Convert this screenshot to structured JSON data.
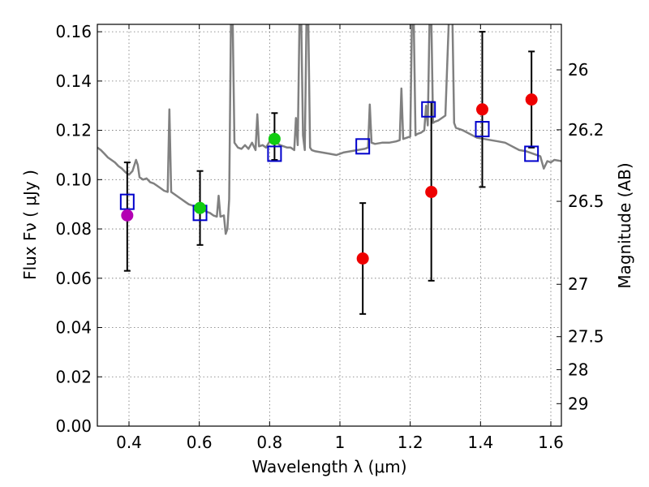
{
  "chart_data": {
    "type": "scatter",
    "title": "",
    "xlabel": "Wavelength  λ (μm)",
    "ylabel": "Flux  Fν  ( μJy )",
    "ylabel_right": "Magnitude (AB)",
    "xlim": [
      0.31,
      1.63
    ],
    "ylim": [
      0.0,
      0.163
    ],
    "grid": true,
    "x_ticks": [
      0.4,
      0.6,
      0.8,
      1.0,
      1.2,
      1.4,
      1.6
    ],
    "x_tick_labels": [
      "0.4",
      "0.6",
      "0.8",
      "1",
      "1.2",
      "1.4",
      "1.6"
    ],
    "y_ticks": [
      0.0,
      0.02,
      0.04,
      0.06,
      0.08,
      0.1,
      0.12,
      0.14,
      0.16
    ],
    "y_tick_labels": [
      "0.00",
      "0.02",
      "0.04",
      "0.06",
      "0.08",
      "0.10",
      "0.12",
      "0.14",
      "0.16"
    ],
    "right_ticks": [
      {
        "mag": 26,
        "label": "26"
      },
      {
        "mag": 26.2,
        "label": "26.2"
      },
      {
        "mag": 26.5,
        "label": "26.5"
      },
      {
        "mag": 27,
        "label": "27"
      },
      {
        "mag": 27.5,
        "label": "27.5"
      },
      {
        "mag": 28,
        "label": "28"
      },
      {
        "mag": 29,
        "label": "29"
      }
    ],
    "colors": {
      "model": "#808080",
      "magenta": "#b300b3",
      "green": "#11cc11",
      "red": "#ee0000",
      "square": "#0000cc",
      "errorbar": "#000000"
    },
    "observed": [
      {
        "x": 0.395,
        "y": 0.0855,
        "yerr_low": 0.0225,
        "yerr_high": 0.0215,
        "color": "magenta"
      },
      {
        "x": 0.602,
        "y": 0.0885,
        "yerr_low": 0.015,
        "yerr_high": 0.015,
        "color": "green"
      },
      {
        "x": 0.814,
        "y": 0.1165,
        "yerr_low": 0.0085,
        "yerr_high": 0.0105,
        "color": "green"
      },
      {
        "x": 1.065,
        "y": 0.068,
        "yerr_low": 0.0225,
        "yerr_high": 0.0225,
        "color": "red"
      },
      {
        "x": 1.26,
        "y": 0.095,
        "yerr_low": 0.036,
        "yerr_high": 0.0365,
        "color": "red"
      },
      {
        "x": 1.405,
        "y": 0.1285,
        "yerr_low": 0.0315,
        "yerr_high": 0.0315,
        "color": "red"
      },
      {
        "x": 1.545,
        "y": 0.1325,
        "yerr_low": 0.0195,
        "yerr_high": 0.0195,
        "color": "red"
      }
    ],
    "model_photometry": [
      {
        "x": 0.395,
        "y": 0.091
      },
      {
        "x": 0.602,
        "y": 0.0865
      },
      {
        "x": 0.814,
        "y": 0.1105
      },
      {
        "x": 1.065,
        "y": 0.1135
      },
      {
        "x": 1.252,
        "y": 0.1285
      },
      {
        "x": 1.405,
        "y": 0.1205
      },
      {
        "x": 1.545,
        "y": 0.1105
      }
    ],
    "model_spectrum": [
      [
        0.31,
        0.113
      ],
      [
        0.32,
        0.112
      ],
      [
        0.33,
        0.1105
      ],
      [
        0.34,
        0.109
      ],
      [
        0.35,
        0.108
      ],
      [
        0.36,
        0.107
      ],
      [
        0.37,
        0.1055
      ],
      [
        0.38,
        0.1045
      ],
      [
        0.39,
        0.103
      ],
      [
        0.4,
        0.102
      ],
      [
        0.41,
        0.1035
      ],
      [
        0.42,
        0.108
      ],
      [
        0.425,
        0.106
      ],
      [
        0.43,
        0.101
      ],
      [
        0.44,
        0.1
      ],
      [
        0.45,
        0.1005
      ],
      [
        0.46,
        0.099
      ],
      [
        0.47,
        0.0985
      ],
      [
        0.48,
        0.0975
      ],
      [
        0.49,
        0.0965
      ],
      [
        0.5,
        0.0955
      ],
      [
        0.51,
        0.095
      ],
      [
        0.515,
        0.1285
      ],
      [
        0.52,
        0.095
      ],
      [
        0.53,
        0.094
      ],
      [
        0.54,
        0.093
      ],
      [
        0.55,
        0.092
      ],
      [
        0.56,
        0.091
      ],
      [
        0.57,
        0.09
      ],
      [
        0.58,
        0.0895
      ],
      [
        0.59,
        0.089
      ],
      [
        0.6,
        0.0885
      ],
      [
        0.61,
        0.088
      ],
      [
        0.62,
        0.087
      ],
      [
        0.63,
        0.0865
      ],
      [
        0.64,
        0.0855
      ],
      [
        0.65,
        0.085
      ],
      [
        0.655,
        0.0935
      ],
      [
        0.66,
        0.085
      ],
      [
        0.67,
        0.0855
      ],
      [
        0.675,
        0.078
      ],
      [
        0.68,
        0.08
      ],
      [
        0.685,
        0.092
      ],
      [
        0.69,
        0.165
      ],
      [
        0.695,
        0.165
      ],
      [
        0.7,
        0.115
      ],
      [
        0.71,
        0.113
      ],
      [
        0.72,
        0.1125
      ],
      [
        0.73,
        0.114
      ],
      [
        0.74,
        0.1125
      ],
      [
        0.75,
        0.115
      ],
      [
        0.76,
        0.112
      ],
      [
        0.765,
        0.1265
      ],
      [
        0.77,
        0.1135
      ],
      [
        0.78,
        0.114
      ],
      [
        0.79,
        0.113
      ],
      [
        0.8,
        0.1155
      ],
      [
        0.81,
        0.1145
      ],
      [
        0.82,
        0.115
      ],
      [
        0.83,
        0.114
      ],
      [
        0.84,
        0.1135
      ],
      [
        0.85,
        0.113
      ],
      [
        0.86,
        0.113
      ],
      [
        0.87,
        0.112
      ],
      [
        0.875,
        0.125
      ],
      [
        0.88,
        0.114
      ],
      [
        0.885,
        0.165
      ],
      [
        0.89,
        0.165
      ],
      [
        0.895,
        0.118
      ],
      [
        0.9,
        0.112
      ],
      [
        0.905,
        0.165
      ],
      [
        0.91,
        0.165
      ],
      [
        0.915,
        0.113
      ],
      [
        0.92,
        0.112
      ],
      [
        0.93,
        0.1115
      ],
      [
        0.95,
        0.111
      ],
      [
        0.97,
        0.1105
      ],
      [
        0.99,
        0.11
      ],
      [
        1.01,
        0.111
      ],
      [
        1.03,
        0.1115
      ],
      [
        1.05,
        0.112
      ],
      [
        1.07,
        0.1125
      ],
      [
        1.08,
        0.113
      ],
      [
        1.085,
        0.1305
      ],
      [
        1.09,
        0.115
      ],
      [
        1.1,
        0.1145
      ],
      [
        1.12,
        0.115
      ],
      [
        1.14,
        0.115
      ],
      [
        1.16,
        0.1155
      ],
      [
        1.17,
        0.116
      ],
      [
        1.175,
        0.137
      ],
      [
        1.18,
        0.1165
      ],
      [
        1.19,
        0.117
      ],
      [
        1.2,
        0.1175
      ],
      [
        1.205,
        0.165
      ],
      [
        1.21,
        0.165
      ],
      [
        1.215,
        0.118
      ],
      [
        1.22,
        0.1185
      ],
      [
        1.23,
        0.119
      ],
      [
        1.24,
        0.12
      ],
      [
        1.245,
        0.13
      ],
      [
        1.25,
        0.122
      ],
      [
        1.255,
        0.165
      ],
      [
        1.26,
        0.165
      ],
      [
        1.265,
        0.123
      ],
      [
        1.27,
        0.1235
      ],
      [
        1.28,
        0.124
      ],
      [
        1.29,
        0.125
      ],
      [
        1.3,
        0.126
      ],
      [
        1.31,
        0.165
      ],
      [
        1.32,
        0.165
      ],
      [
        1.325,
        0.123
      ],
      [
        1.33,
        0.121
      ],
      [
        1.35,
        0.12
      ],
      [
        1.37,
        0.1185
      ],
      [
        1.39,
        0.117
      ],
      [
        1.41,
        0.1165
      ],
      [
        1.43,
        0.116
      ],
      [
        1.45,
        0.1155
      ],
      [
        1.47,
        0.115
      ],
      [
        1.49,
        0.1135
      ],
      [
        1.51,
        0.112
      ],
      [
        1.53,
        0.1115
      ],
      [
        1.55,
        0.1105
      ],
      [
        1.57,
        0.1095
      ],
      [
        1.58,
        0.1045
      ],
      [
        1.59,
        0.1075
      ],
      [
        1.6,
        0.107
      ],
      [
        1.61,
        0.108
      ],
      [
        1.63,
        0.1075
      ]
    ]
  }
}
